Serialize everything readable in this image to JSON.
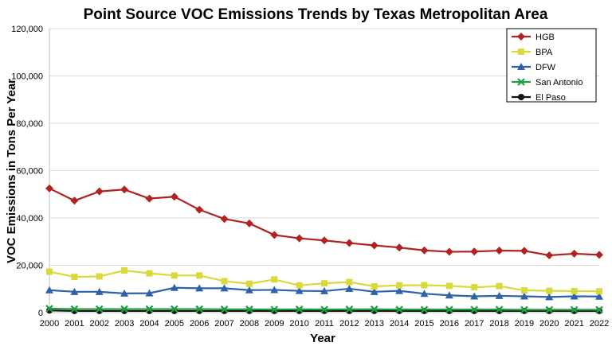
{
  "chart_data": {
    "type": "line",
    "title": "Point Source VOC Emissions Trends by Texas Metropolitan Area",
    "xlabel": "Year",
    "ylabel": "VOC Emissions in Tons Per Year",
    "ylim": [
      0,
      120000
    ],
    "yticks": [
      0,
      20000,
      40000,
      60000,
      80000,
      100000,
      120000
    ],
    "ytick_labels": [
      "0",
      "20,000",
      "40,000",
      "60,000",
      "80,000",
      "100,000",
      "120,000"
    ],
    "grid": true,
    "legend_position": "top-right",
    "categories": [
      "2000",
      "2001",
      "2002",
      "2003",
      "2004",
      "2005",
      "2006",
      "2007",
      "2008",
      "2009",
      "2010",
      "2011",
      "2012",
      "2013",
      "2014",
      "2015",
      "2016",
      "2017",
      "2018",
      "2019",
      "2020",
      "2021",
      "2022"
    ],
    "series": [
      {
        "name": "HGB",
        "color": "#b22222",
        "marker": "diamond",
        "values": [
          52500,
          47300,
          51200,
          52000,
          48200,
          49000,
          43500,
          39600,
          37700,
          32800,
          31400,
          30500,
          29400,
          28400,
          27500,
          26300,
          25700,
          25800,
          26200,
          26100,
          24200,
          24900,
          24400
        ]
      },
      {
        "name": "BPA",
        "color": "#d9d93a",
        "marker": "square",
        "values": [
          17300,
          15100,
          15300,
          17800,
          16600,
          15700,
          15700,
          13300,
          12200,
          14000,
          11500,
          12400,
          12900,
          11100,
          11500,
          11600,
          11300,
          10700,
          11200,
          9400,
          9200,
          9100,
          9000
        ]
      },
      {
        "name": "DFW",
        "color": "#2e62ad",
        "marker": "triangle",
        "values": [
          9500,
          8800,
          8800,
          8100,
          8200,
          10500,
          10300,
          10300,
          9500,
          9600,
          9200,
          9100,
          10100,
          8800,
          9200,
          8000,
          7300,
          6900,
          7100,
          6900,
          6600,
          6900,
          6800
        ]
      },
      {
        "name": "San Antonio",
        "color": "#1f9e3f",
        "marker": "x",
        "values": [
          1700,
          1500,
          1500,
          1500,
          1500,
          1500,
          1500,
          1400,
          1400,
          1300,
          1400,
          1300,
          1400,
          1400,
          1300,
          1300,
          1300,
          1300,
          1300,
          1200,
          1200,
          1200,
          1200
        ]
      },
      {
        "name": "El Paso",
        "color": "#111111",
        "marker": "circle",
        "values": [
          900,
          700,
          700,
          700,
          700,
          700,
          700,
          700,
          700,
          700,
          700,
          700,
          700,
          700,
          700,
          700,
          700,
          700,
          700,
          700,
          700,
          700,
          700
        ]
      }
    ]
  }
}
